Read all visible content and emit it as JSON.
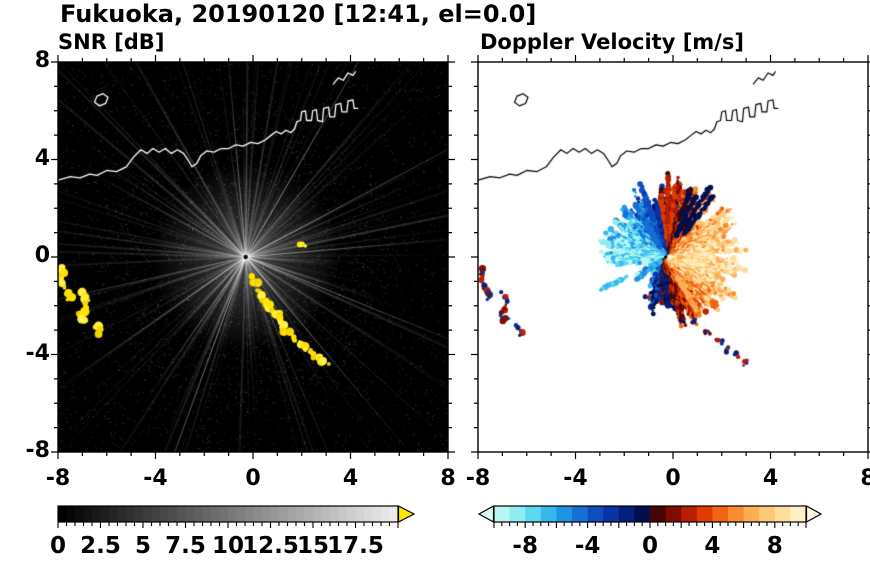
{
  "header": {
    "title": "Fukuoka, 20190120 [12:41, el=0.0]"
  },
  "axes": {
    "x_range": [
      -8,
      8
    ],
    "y_range": [
      -8,
      8
    ],
    "x_tick_values": [
      -8,
      -4,
      0,
      4,
      8
    ],
    "x_tick_labels": [
      "-8",
      "-4",
      "0",
      "4",
      "8"
    ],
    "y_tick_values": [
      8,
      4,
      0,
      -4,
      -8
    ],
    "y_tick_labels": [
      "8",
      "4",
      "0",
      "-4",
      "-8"
    ],
    "minor_tick_step": 1
  },
  "chart_data": [
    {
      "type": "heatmap",
      "panel": "left",
      "title": "SNR [dB]",
      "xlim": [
        -8,
        8
      ],
      "ylim": [
        -8,
        8
      ],
      "background": "#000000",
      "radar_center": [
        -0.3,
        0.0
      ],
      "description": "Radar PPI of signal-to-noise ratio: black background with faint gray radial beams emanating from the radar near (-0.3,0); saturated yellow ground-clutter echoes hug the west edge near (-7.7,-1) and (-6.9,-2.2) and run in a broken line from the radar toward the southeast ending near (3.1,-4.5); white coastline of Fukuoka bay along the top.",
      "colorbar": {
        "range": [
          0,
          20
        ],
        "segment_step": 0.5,
        "palette": "grayscale-black-to-white",
        "overflow_arrow_color": "#ffe400",
        "tick_label_values": [
          0,
          2.5,
          5,
          7.5,
          10,
          12.5,
          15,
          17.5
        ],
        "tick_labels": [
          "0",
          "2.5",
          "5",
          "7.5",
          "10",
          "12.5",
          "15",
          "17.5"
        ]
      },
      "echoes": {
        "color_choices": [
          "#ffe400",
          "#fff045",
          "#f2d600"
        ],
        "left_arcs": [
          [
            [
              -7.8,
              -0.5
            ],
            [
              -7.85,
              -0.95
            ],
            [
              -7.7,
              -1.3
            ],
            [
              -7.5,
              -1.6
            ],
            [
              -7.55,
              -1.8
            ]
          ],
          [
            [
              -7.0,
              -1.5
            ],
            [
              -6.8,
              -1.85
            ],
            [
              -6.9,
              -2.15
            ],
            [
              -7.1,
              -2.3
            ],
            [
              -6.95,
              -2.6
            ],
            [
              -6.7,
              -2.55
            ]
          ],
          [
            [
              -6.45,
              -2.8
            ],
            [
              -6.2,
              -3.05
            ],
            [
              -6.3,
              -3.25
            ]
          ]
        ],
        "clutter_line": [
          [
            -0.1,
            -0.8
          ],
          [
            0.15,
            -1.1
          ],
          [
            0.35,
            -1.45
          ],
          [
            0.45,
            -1.8
          ],
          [
            0.7,
            -2.05
          ],
          [
            1.0,
            -2.3
          ],
          [
            1.2,
            -2.6
          ],
          [
            1.3,
            -3.0
          ],
          [
            1.6,
            -3.3
          ],
          [
            2.0,
            -3.6
          ],
          [
            2.3,
            -3.9
          ],
          [
            2.7,
            -4.2
          ],
          [
            3.1,
            -4.45
          ]
        ],
        "near_center": [
          [
            1.9,
            0.55
          ],
          [
            2.25,
            0.45
          ]
        ]
      }
    },
    {
      "type": "heatmap",
      "panel": "right",
      "title": "Doppler Velocity [m/s]",
      "xlim": [
        -8,
        8
      ],
      "ylim": [
        -8,
        8
      ],
      "background": "#ffffff",
      "radar_center": [
        -0.3,
        0.0
      ],
      "description": "Doppler velocity fan around the radar: negative velocities (cyan/blue, toward radar) to the north and north-west, positive (orange/red/yellow, away) to the east and south-east, with dark navy and bright red aliased streaks near the zero isodop; small red/navy clutter patches at the west edge and scattered south-east of the radar; black coastline along the top.",
      "colorbar": {
        "range": [
          -10,
          10
        ],
        "segment_step": 1,
        "colors": [
          "#b8f7f0",
          "#8deef2",
          "#5bd8f2",
          "#36b8ee",
          "#1f93e4",
          "#1670d6",
          "#0e4cc0",
          "#0834a4",
          "#041f7e",
          "#020e4e",
          "#460404",
          "#7e0c00",
          "#b81e00",
          "#e03c00",
          "#f26414",
          "#f88c30",
          "#fbae54",
          "#fdc878",
          "#fede9c",
          "#fef0c4"
        ],
        "under_arrow_color": "#d9fdf6",
        "over_arrow_color": "#fffae0",
        "tick_label_values": [
          -8,
          -4,
          0,
          4,
          8
        ],
        "tick_labels": [
          "-8",
          "-4",
          "0",
          "4",
          "8"
        ]
      },
      "fan": {
        "center": [
          -0.3,
          0.0
        ],
        "vmax": 8.5,
        "blue_sector_deg": [
          95,
          190
        ],
        "gap_sector_deg": [
          190,
          250
        ],
        "south_sector_deg": [
          250,
          280
        ],
        "base_radius": 2.2,
        "max_radius": 3.6
      },
      "alias_streaks": [
        {
          "a": 52,
          "v": -0.6,
          "r0": 1.2,
          "r1": 3.2
        },
        {
          "a": 58,
          "v": -0.4,
          "r0": 1.5,
          "r1": 3.4
        },
        {
          "a": 64,
          "v": -0.6,
          "r0": 1.0,
          "r1": 2.8
        },
        {
          "a": 70,
          "v": -0.3,
          "r0": 1.6,
          "r1": 3.0
        },
        {
          "a": 82,
          "v": 3.2,
          "r0": 0.8,
          "r1": 3.0
        },
        {
          "a": 88,
          "v": 2.6,
          "r0": 0.5,
          "r1": 3.3
        },
        {
          "a": 94,
          "v": 3.4,
          "r0": 0.8,
          "r1": 2.6
        },
        {
          "a": 100,
          "v": -2.2,
          "r0": 0.5,
          "r1": 2.4
        },
        {
          "a": 108,
          "v": -3.5,
          "r0": 0.6,
          "r1": 2.8
        },
        {
          "a": 120,
          "v": -4.5,
          "r0": 0.5,
          "r1": 2.6
        },
        {
          "a": 207,
          "v": -7.0,
          "r0": 1.8,
          "r1": 3.0
        },
        {
          "a": 218,
          "v": -6.0,
          "r0": 0.3,
          "r1": 1.5
        },
        {
          "a": 272,
          "v": -1.2,
          "r0": 0.8,
          "r1": 2.0
        },
        {
          "a": 300,
          "v": 6.5,
          "r0": 1.0,
          "r1": 2.6
        }
      ],
      "patch_colors": [
        "#b81e00",
        "#7e0c00",
        "#0834a4",
        "#041f7e"
      ],
      "scatter_points": [
        [
          -1.1,
          -1.6
        ],
        [
          0.9,
          -2.6
        ],
        [
          1.4,
          -3.1
        ],
        [
          1.9,
          -3.5
        ],
        [
          2.3,
          -3.8
        ],
        [
          2.6,
          -4.05
        ],
        [
          3.0,
          -4.35
        ]
      ]
    }
  ],
  "map": {
    "coastline": [
      [
        [
          -8,
          3.15
        ],
        [
          -7.5,
          3.3
        ],
        [
          -7.1,
          3.25
        ],
        [
          -6.7,
          3.4
        ],
        [
          -6.4,
          3.35
        ],
        [
          -6.0,
          3.55
        ],
        [
          -5.6,
          3.5
        ],
        [
          -5.2,
          3.7
        ],
        [
          -4.9,
          4.1
        ],
        [
          -4.6,
          4.4
        ],
        [
          -4.35,
          4.25
        ],
        [
          -4.1,
          4.45
        ],
        [
          -3.85,
          4.3
        ],
        [
          -3.6,
          4.45
        ],
        [
          -3.35,
          4.25
        ],
        [
          -3.1,
          4.4
        ],
        [
          -2.85,
          4.25
        ],
        [
          -2.65,
          3.95
        ],
        [
          -2.5,
          3.7
        ],
        [
          -2.3,
          3.85
        ],
        [
          -2.15,
          4.15
        ],
        [
          -1.9,
          4.35
        ],
        [
          -1.6,
          4.3
        ],
        [
          -1.3,
          4.45
        ],
        [
          -1.0,
          4.45
        ],
        [
          -0.7,
          4.6
        ],
        [
          -0.4,
          4.55
        ],
        [
          -0.1,
          4.7
        ],
        [
          0.2,
          4.65
        ],
        [
          0.5,
          4.8
        ],
        [
          0.75,
          5.0
        ],
        [
          0.95,
          5.15
        ],
        [
          1.15,
          5.05
        ],
        [
          1.35,
          5.2
        ],
        [
          1.55,
          5.1
        ],
        [
          1.7,
          5.25
        ],
        [
          1.8,
          5.55
        ],
        [
          1.95,
          5.6
        ],
        [
          2.0,
          5.95
        ],
        [
          2.15,
          6.0
        ],
        [
          2.2,
          5.6
        ],
        [
          2.4,
          5.6
        ],
        [
          2.45,
          6.0
        ],
        [
          2.6,
          6.05
        ],
        [
          2.65,
          5.6
        ],
        [
          2.85,
          5.55
        ],
        [
          2.9,
          6.1
        ],
        [
          3.1,
          6.15
        ],
        [
          3.15,
          5.75
        ],
        [
          3.35,
          5.75
        ],
        [
          3.4,
          6.25
        ],
        [
          3.6,
          6.3
        ],
        [
          3.65,
          5.95
        ],
        [
          3.85,
          5.95
        ],
        [
          3.9,
          6.4
        ],
        [
          4.1,
          6.45
        ],
        [
          4.15,
          6.1
        ],
        [
          4.3,
          6.1
        ]
      ],
      [
        [
          3.3,
          7.1
        ],
        [
          3.5,
          7.35
        ],
        [
          3.7,
          7.25
        ],
        [
          3.9,
          7.55
        ],
        [
          4.1,
          7.45
        ],
        [
          4.2,
          7.6
        ]
      ]
    ],
    "islands": [
      [
        [
          -6.5,
          6.35
        ],
        [
          -6.3,
          6.2
        ],
        [
          -6.05,
          6.3
        ],
        [
          -5.95,
          6.55
        ],
        [
          -6.15,
          6.7
        ],
        [
          -6.4,
          6.6
        ],
        [
          -6.5,
          6.35
        ]
      ]
    ]
  }
}
